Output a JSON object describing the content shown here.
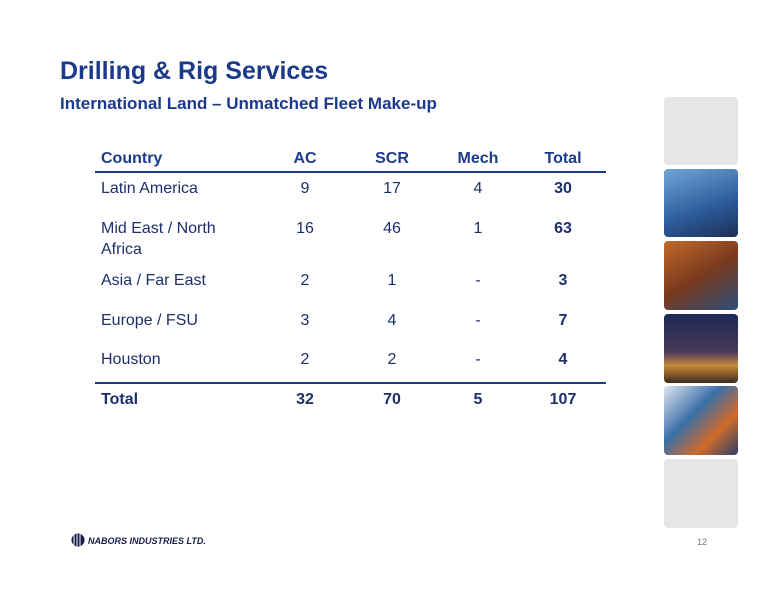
{
  "header": {
    "title": "Drilling & Rig Services",
    "subtitle": "International Land – Unmatched Fleet Make-up"
  },
  "table": {
    "columns": [
      "Country",
      "AC",
      "SCR",
      "Mech",
      "Total"
    ],
    "rows": [
      [
        "Latin America",
        9,
        17,
        4,
        30
      ],
      [
        "Mid East / North Africa",
        16,
        46,
        1,
        63
      ],
      [
        "Asia / Far East",
        2,
        1,
        "-",
        3
      ],
      [
        "Europe / FSU",
        3,
        4,
        "-",
        7
      ],
      [
        "Houston",
        2,
        2,
        "-",
        4
      ]
    ],
    "total": [
      "Total",
      32,
      70,
      5,
      107
    ]
  },
  "footer": {
    "company": "NABORS INDUSTRIES LTD.",
    "page": "12"
  }
}
